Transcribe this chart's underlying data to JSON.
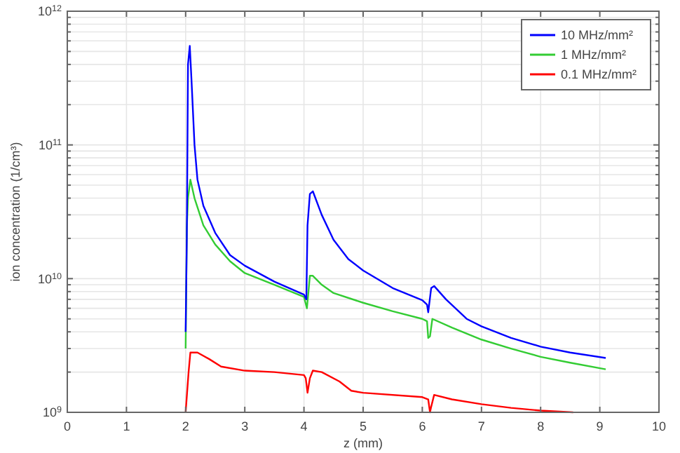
{
  "chart_data": {
    "type": "line",
    "xlabel": "z (mm)",
    "ylabel": "ion concentration (1/cm³)",
    "log": "y",
    "grid": true,
    "legend": "top right",
    "line_style": "solid",
    "marker": "none",
    "xlim": [
      0,
      10
    ],
    "xticks": [
      0,
      1,
      2,
      3,
      4,
      5,
      6,
      7,
      8,
      9,
      10
    ],
    "ylim": [
      1000000000.0,
      1000000000000.0
    ],
    "yticks": [
      {
        "value": 1000000000.0,
        "label": "10$^{9}$"
      },
      {
        "value": 2000000000.0,
        "label": null
      },
      {
        "value": 3000000000.0,
        "label": null
      },
      {
        "value": 4000000000.0,
        "label": null
      },
      {
        "value": 5000000000.0,
        "label": null
      },
      {
        "value": 6000000000.0,
        "label": null
      },
      {
        "value": 7000000000.0,
        "label": null
      },
      {
        "value": 8000000000.0,
        "label": null
      },
      {
        "value": 9000000000.0,
        "label": null
      },
      {
        "value": 10000000000.0,
        "label": "10$^{10}$"
      },
      {
        "value": 20000000000.0,
        "label": null
      },
      {
        "value": 30000000000.0,
        "label": null
      },
      {
        "value": 40000000000.0,
        "label": null
      },
      {
        "value": 50000000000.0,
        "label": null
      },
      {
        "value": 60000000000.0,
        "label": null
      },
      {
        "value": 70000000000.0,
        "label": null
      },
      {
        "value": 80000000000.0,
        "label": null
      },
      {
        "value": 90000000000.0,
        "label": null
      },
      {
        "value": 100000000000.0,
        "label": "10$^{11}$"
      },
      {
        "value": 200000000000.0,
        "label": null
      },
      {
        "value": 300000000000.0,
        "label": null
      },
      {
        "value": 400000000000.0,
        "label": null
      },
      {
        "value": 500000000000.0,
        "label": null
      },
      {
        "value": 600000000000.0,
        "label": null
      },
      {
        "value": 700000000000.0,
        "label": null
      },
      {
        "value": 800000000000.0,
        "label": null
      },
      {
        "value": 900000000000.0,
        "label": null
      },
      {
        "value": 1000000000000.0,
        "label": "10$^{12}$"
      }
    ],
    "series": [
      {
        "name": "10 MHz/mm²",
        "color": "#0000ff",
        "x": [
          2.0,
          2.02,
          2.04,
          2.07,
          2.1,
          2.15,
          2.2,
          2.3,
          2.5,
          2.75,
          3.0,
          3.5,
          4.0,
          4.04,
          4.06,
          4.1,
          4.15,
          4.3,
          4.5,
          4.75,
          5.0,
          5.5,
          6.0,
          6.08,
          6.1,
          6.15,
          6.2,
          6.4,
          6.75,
          7.0,
          7.5,
          8.0,
          8.5,
          9.1
        ],
        "values": [
          4000000000.0,
          20000000000.0,
          400000000000.0,
          550000000000.0,
          300000000000.0,
          100000000000.0,
          55000000000.0,
          35000000000.0,
          22000000000.0,
          15000000000.0,
          12500000000.0,
          9500000000.0,
          7600000000.0,
          7000000000.0,
          25000000000.0,
          43000000000.0,
          45000000000.0,
          30000000000.0,
          19500000000.0,
          14000000000.0,
          11500000000.0,
          8500000000.0,
          6900000000.0,
          6400000000.0,
          5600000000.0,
          8500000000.0,
          8800000000.0,
          7000000000.0,
          5000000000.0,
          4400000000.0,
          3600000000.0,
          3100000000.0,
          2800000000.0,
          2550000000.0
        ]
      },
      {
        "name": "1 MHz/mm²",
        "color": "#33cc33",
        "x": [
          2.0,
          2.02,
          2.04,
          2.08,
          2.15,
          2.3,
          2.5,
          2.75,
          3.0,
          3.5,
          4.0,
          4.05,
          4.1,
          4.15,
          4.3,
          4.5,
          5.0,
          5.5,
          6.0,
          6.08,
          6.1,
          6.13,
          6.17,
          6.5,
          7.0,
          7.5,
          8.0,
          8.5,
          9.1
        ],
        "values": [
          3000000000.0,
          24000000000.0,
          40000000000.0,
          55000000000.0,
          40000000000.0,
          25000000000.0,
          18000000000.0,
          13500000000.0,
          11000000000.0,
          9000000000.0,
          7300000000.0,
          6000000000.0,
          10500000000.0,
          10500000000.0,
          9000000000.0,
          7800000000.0,
          6600000000.0,
          5700000000.0,
          5000000000.0,
          4800000000.0,
          3600000000.0,
          3700000000.0,
          5000000000.0,
          4300000000.0,
          3500000000.0,
          3000000000.0,
          2600000000.0,
          2350000000.0,
          2100000000.0
        ]
      },
      {
        "name": "0.1 MHz/mm²",
        "color": "#ff0000",
        "x": [
          2.0,
          2.05,
          2.08,
          2.2,
          2.4,
          2.6,
          3.0,
          3.5,
          4.0,
          4.03,
          4.06,
          4.1,
          4.15,
          4.3,
          4.6,
          4.8,
          5.0,
          6.0,
          6.1,
          6.13,
          6.15,
          6.2,
          6.5,
          7.0,
          7.5,
          8.0,
          8.55
        ],
        "values": [
          1000000000.0,
          2000000000.0,
          2800000000.0,
          2800000000.0,
          2500000000.0,
          2200000000.0,
          2050000000.0,
          2000000000.0,
          1900000000.0,
          1800000000.0,
          1400000000.0,
          1800000000.0,
          2050000000.0,
          2000000000.0,
          1700000000.0,
          1450000000.0,
          1400000000.0,
          1300000000.0,
          1250000000.0,
          1000000000.0,
          1100000000.0,
          1350000000.0,
          1250000000.0,
          1150000000.0,
          1080000000.0,
          1030000000.0,
          1000000000.0
        ]
      }
    ]
  }
}
